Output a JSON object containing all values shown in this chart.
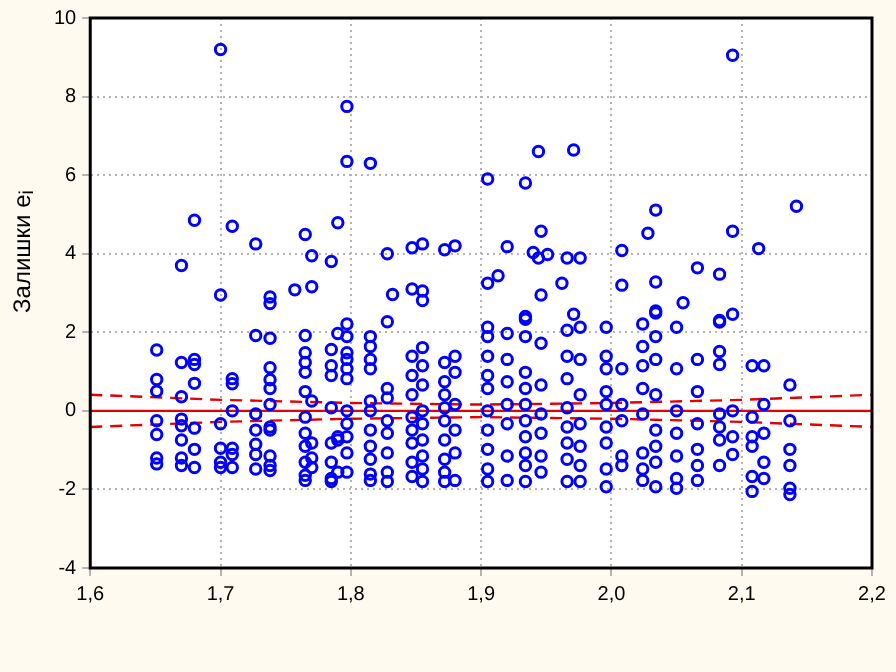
{
  "chart_data": {
    "type": "scatter",
    "ylabel": "Залишки e$_{i}$",
    "xlim": [
      1.6,
      2.2
    ],
    "ylim": [
      -4,
      10
    ],
    "xticks": [
      {
        "value": 1.6,
        "label": "1,6"
      },
      {
        "value": 1.7,
        "label": "1,7"
      },
      {
        "value": 1.8,
        "label": "1,8"
      },
      {
        "value": 1.9,
        "label": "1,9"
      },
      {
        "value": 2.0,
        "label": "2,0"
      },
      {
        "value": 2.1,
        "label": "2,1"
      },
      {
        "value": 2.2,
        "label": "2,2"
      }
    ],
    "yticks": [
      -4,
      -2,
      0,
      2,
      4,
      6,
      8,
      10
    ],
    "grid": true,
    "legend": false,
    "marker": "circle",
    "ref_lines": [
      {
        "axis": "y",
        "value": 0,
        "color": "#e00000",
        "line_style": "solid"
      }
    ],
    "series": [
      {
        "color": "#0000ff",
        "x": [
          1.651,
          1.651,
          1.651,
          1.651,
          1.651,
          1.651,
          1.651,
          1.67,
          1.67,
          1.67,
          1.67,
          1.67,
          1.67,
          1.67,
          1.67,
          1.68,
          1.68,
          1.68,
          1.68,
          1.68,
          1.68,
          1.68,
          1.7,
          1.7,
          1.7,
          1.7,
          1.7,
          1.7,
          1.709,
          1.709,
          1.709,
          1.709,
          1.709,
          1.709,
          1.709,
          1.727,
          1.727,
          1.727,
          1.727,
          1.727,
          1.727,
          1.727,
          1.738,
          1.738,
          1.738,
          1.738,
          1.738,
          1.738,
          1.738,
          1.738,
          1.738,
          1.738,
          1.738,
          1.738,
          1.757,
          1.765,
          1.765,
          1.765,
          1.765,
          1.765,
          1.765,
          1.765,
          1.765,
          1.765,
          1.765,
          1.765,
          1.765,
          1.77,
          1.77,
          1.77,
          1.77,
          1.77,
          1.77,
          1.785,
          1.785,
          1.785,
          1.785,
          1.785,
          1.785,
          1.785,
          1.785,
          1.785,
          1.79,
          1.79,
          1.79,
          1.79,
          1.79,
          1.797,
          1.797,
          1.797,
          1.797,
          1.797,
          1.797,
          1.797,
          1.797,
          1.797,
          1.797,
          1.797,
          1.797,
          1.797,
          1.815,
          1.815,
          1.815,
          1.815,
          1.815,
          1.815,
          1.815,
          1.815,
          1.815,
          1.815,
          1.815,
          1.815,
          1.828,
          1.828,
          1.828,
          1.828,
          1.828,
          1.828,
          1.828,
          1.828,
          1.828,
          1.832,
          1.847,
          1.847,
          1.847,
          1.847,
          1.847,
          1.847,
          1.847,
          1.847,
          1.847,
          1.847,
          1.855,
          1.855,
          1.855,
          1.855,
          1.855,
          1.855,
          1.855,
          1.855,
          1.855,
          1.855,
          1.855,
          1.855,
          1.872,
          1.872,
          1.872,
          1.872,
          1.872,
          1.872,
          1.872,
          1.872,
          1.872,
          1.872,
          1.88,
          1.88,
          1.88,
          1.88,
          1.88,
          1.88,
          1.88,
          1.905,
          1.905,
          1.905,
          1.905,
          1.905,
          1.905,
          1.905,
          1.905,
          1.905,
          1.905,
          1.905,
          1.905,
          1.913,
          1.92,
          1.92,
          1.92,
          1.92,
          1.92,
          1.92,
          1.92,
          1.92,
          1.934,
          1.934,
          1.934,
          1.934,
          1.934,
          1.934,
          1.934,
          1.934,
          1.934,
          1.934,
          1.934,
          1.934,
          1.94,
          1.944,
          1.944,
          1.946,
          1.946,
          1.946,
          1.946,
          1.946,
          1.946,
          1.946,
          1.946,
          1.951,
          1.962,
          1.966,
          1.966,
          1.966,
          1.966,
          1.966,
          1.966,
          1.966,
          1.966,
          1.966,
          1.971,
          1.971,
          1.976,
          1.976,
          1.976,
          1.976,
          1.976,
          1.976,
          1.976,
          1.976,
          1.996,
          1.996,
          1.996,
          1.996,
          1.996,
          1.996,
          1.996,
          1.996,
          1.996,
          2.008,
          2.008,
          2.008,
          2.008,
          2.008,
          2.008,
          2.008,
          2.024,
          2.024,
          2.024,
          2.024,
          2.024,
          2.024,
          2.024,
          2.024,
          2.028,
          2.034,
          2.034,
          2.034,
          2.034,
          2.034,
          2.034,
          2.034,
          2.034,
          2.034,
          2.034,
          2.034,
          2.05,
          2.05,
          2.05,
          2.05,
          2.05,
          2.05,
          2.05,
          2.055,
          2.066,
          2.066,
          2.066,
          2.066,
          2.066,
          2.066,
          2.066,
          2.083,
          2.083,
          2.083,
          2.083,
          2.083,
          2.083,
          2.083,
          2.083,
          2.083,
          2.093,
          2.093,
          2.093,
          2.093,
          2.093,
          2.093,
          2.108,
          2.108,
          2.108,
          2.108,
          2.108,
          2.108,
          2.113,
          2.117,
          2.117,
          2.117,
          2.117,
          2.117,
          2.137,
          2.137,
          2.137,
          2.137,
          2.137,
          2.137,
          2.142
        ],
        "values": [
          1.55,
          0.8,
          0.5,
          -0.25,
          -0.6,
          -1.2,
          -1.35,
          3.7,
          1.23,
          0.36,
          -0.21,
          -0.38,
          -0.74,
          -1.2,
          -1.39,
          4.85,
          1.31,
          1.18,
          0.7,
          -0.44,
          -0.98,
          -1.44,
          9.2,
          2.95,
          -0.33,
          -0.95,
          -1.31,
          -1.44,
          4.7,
          0.82,
          0.69,
          0.0,
          -0.95,
          -1.11,
          -1.44,
          4.25,
          1.92,
          -0.08,
          -0.49,
          -0.85,
          -1.11,
          -1.48,
          2.9,
          2.73,
          1.85,
          1.1,
          0.79,
          0.57,
          0.16,
          -0.41,
          -0.49,
          -1.15,
          -1.39,
          -1.52,
          3.08,
          4.49,
          1.92,
          1.48,
          1.23,
          0.98,
          0.49,
          -0.16,
          -0.57,
          -0.9,
          -1.31,
          -1.64,
          -1.77,
          3.95,
          3.16,
          0.25,
          -0.82,
          -1.2,
          -1.44,
          3.8,
          1.56,
          1.15,
          0.9,
          0.08,
          -0.82,
          -1.31,
          -1.72,
          -1.8,
          4.79,
          1.97,
          -0.66,
          -0.74,
          -1.56,
          7.75,
          6.35,
          2.21,
          1.89,
          1.48,
          1.31,
          1.07,
          0.82,
          0,
          -0.33,
          -0.66,
          -1.07,
          -1.56,
          6.3,
          1.89,
          1.64,
          1.31,
          1.07,
          0.25,
          0,
          -0.49,
          -0.9,
          -1.23,
          -1.61,
          -1.77,
          4.0,
          2.27,
          0.57,
          0.33,
          -0.25,
          -0.57,
          -1.07,
          -1.56,
          -1.8,
          2.96,
          4.15,
          3.1,
          1.39,
          0.9,
          0.41,
          -0.16,
          -0.49,
          -0.82,
          -1.31,
          -1.67,
          4.25,
          3.05,
          2.81,
          1.61,
          1.15,
          0.66,
          0,
          -0.33,
          -0.74,
          -1.15,
          -1.48,
          -1.8,
          4.1,
          1.23,
          0.74,
          0.41,
          0.08,
          -0.25,
          -0.74,
          -1.23,
          -1.56,
          -1.8,
          4.2,
          1.39,
          0.98,
          0.16,
          -0.49,
          -1.07,
          -1.77,
          5.9,
          3.25,
          2.13,
          1.89,
          1.39,
          0.9,
          0.57,
          0,
          -0.49,
          -0.98,
          -1.48,
          -1.8,
          3.44,
          4.18,
          1.97,
          1.31,
          0.74,
          0.16,
          -0.33,
          -1.15,
          -1.77,
          5.8,
          2.4,
          2.33,
          1.89,
          0.98,
          0.57,
          0.16,
          -0.25,
          -0.66,
          -1.07,
          -1.39,
          -1.8,
          4.03,
          6.6,
          3.89,
          4.57,
          2.95,
          1.72,
          0.66,
          -0.08,
          -0.57,
          -1.15,
          -1.56,
          3.98,
          3.25,
          3.89,
          2.05,
          1.39,
          0.82,
          0.08,
          -0.41,
          -0.82,
          -1.23,
          -1.8,
          6.64,
          2.46,
          3.89,
          2.13,
          1.31,
          0.41,
          -0.33,
          -0.9,
          -1.39,
          -1.8,
          2.13,
          1.39,
          1.07,
          0.49,
          0.16,
          -0.41,
          -0.82,
          -1.48,
          -1.93,
          4.08,
          3.2,
          1.07,
          0.16,
          -0.25,
          -1.15,
          -1.39,
          2.21,
          1.64,
          1.15,
          0.57,
          -0.08,
          -1.07,
          -1.48,
          -1.77,
          4.52,
          5.11,
          3.28,
          2.54,
          2.49,
          1.89,
          1.31,
          0.41,
          -0.49,
          -0.9,
          -1.31,
          -1.93,
          2.13,
          1.07,
          0,
          -0.57,
          -1.15,
          -1.72,
          -1.97,
          2.75,
          3.64,
          1.31,
          0.49,
          -0.33,
          -0.98,
          -1.39,
          -1.77,
          3.48,
          2.3,
          2.26,
          1.51,
          1.18,
          -0.08,
          -0.41,
          -0.74,
          -1.39,
          9.05,
          4.57,
          2.46,
          0,
          -0.66,
          -1.11,
          1.15,
          -0.16,
          -0.66,
          -0.9,
          -1.67,
          -2.05,
          4.13,
          1.15,
          0.16,
          -0.57,
          -1.31,
          -1.72,
          0.66,
          -0.25,
          -0.98,
          -1.39,
          -1.97,
          -2.13,
          5.21
        ]
      },
      {
        "type": "line",
        "color": "#e00000",
        "line_style": "dashed",
        "marker": "none",
        "x": [
          1.6,
          1.7,
          1.8,
          1.9,
          2.0,
          2.1,
          2.2
        ],
        "values": [
          0.41,
          0.28,
          0.2,
          0.16,
          0.2,
          0.28,
          0.41
        ]
      },
      {
        "type": "line",
        "color": "#e00000",
        "line_style": "dashed",
        "marker": "none",
        "x": [
          1.6,
          1.7,
          1.8,
          1.9,
          2.0,
          2.1,
          2.2
        ],
        "values": [
          -0.41,
          -0.28,
          -0.2,
          -0.16,
          -0.2,
          -0.28,
          -0.41
        ]
      }
    ]
  }
}
